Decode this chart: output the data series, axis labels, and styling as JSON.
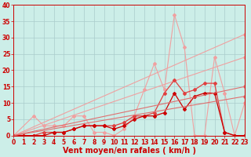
{
  "xlabel": "Vent moyen/en rafales ( km/h )",
  "background_color": "#cceee8",
  "grid_color": "#aacccc",
  "xlim": [
    0,
    23
  ],
  "ylim": [
    0,
    40
  ],
  "xticks": [
    0,
    1,
    2,
    3,
    4,
    5,
    6,
    7,
    8,
    9,
    10,
    11,
    12,
    13,
    14,
    15,
    16,
    17,
    18,
    19,
    20,
    21,
    22,
    23
  ],
  "yticks": [
    0,
    5,
    10,
    15,
    20,
    25,
    30,
    35,
    40
  ],
  "series": [
    {
      "name": "light_scatter",
      "color": "#f0a0a0",
      "lw": 0.8,
      "marker": "D",
      "ms": 2,
      "x": [
        0,
        2,
        3,
        4,
        5,
        6,
        7,
        8,
        9,
        10,
        11,
        12,
        13,
        14,
        15,
        16,
        17,
        18,
        19,
        20,
        21,
        22,
        23
      ],
      "y": [
        0,
        6,
        3,
        3,
        3,
        6,
        6,
        1,
        1,
        0,
        2,
        6,
        14,
        22,
        14,
        37,
        27,
        0,
        0,
        24,
        13,
        0,
        10
      ]
    },
    {
      "name": "linear_high",
      "color": "#f0a0a0",
      "lw": 0.8,
      "marker": "D",
      "ms": 2,
      "x": [
        0,
        23
      ],
      "y": [
        0,
        31
      ]
    },
    {
      "name": "linear_mid",
      "color": "#f0a0a0",
      "lw": 0.8,
      "marker": "D",
      "ms": 2,
      "x": [
        0,
        23
      ],
      "y": [
        0,
        24
      ]
    },
    {
      "name": "medium_red",
      "color": "#e04040",
      "lw": 0.9,
      "marker": "D",
      "ms": 2,
      "x": [
        0,
        1,
        2,
        3,
        4,
        5,
        6,
        7,
        8,
        9,
        10,
        11,
        12,
        13,
        14,
        15,
        16,
        17,
        18,
        19,
        20,
        21,
        22,
        23
      ],
      "y": [
        0,
        0,
        0,
        1,
        1,
        1,
        2,
        3,
        3,
        3,
        3,
        4,
        6,
        6,
        7,
        13,
        17,
        13,
        14,
        16,
        16,
        1,
        0,
        0
      ]
    },
    {
      "name": "dark_red",
      "color": "#cc0000",
      "lw": 0.9,
      "marker": "D",
      "ms": 2,
      "x": [
        0,
        1,
        2,
        3,
        4,
        5,
        6,
        7,
        8,
        9,
        10,
        11,
        12,
        13,
        14,
        15,
        16,
        17,
        18,
        19,
        20,
        21,
        22,
        23
      ],
      "y": [
        0,
        0,
        0,
        0,
        1,
        1,
        2,
        3,
        3,
        3,
        2,
        3,
        5,
        6,
        6,
        7,
        13,
        8,
        12,
        13,
        13,
        1,
        0,
        0
      ]
    },
    {
      "name": "linear_low1",
      "color": "#e07070",
      "lw": 0.8,
      "marker": "D",
      "ms": 2,
      "x": [
        0,
        23
      ],
      "y": [
        0,
        15
      ]
    },
    {
      "name": "linear_low2",
      "color": "#e07070",
      "lw": 0.8,
      "marker": "D",
      "ms": 2,
      "x": [
        0,
        23
      ],
      "y": [
        0,
        12
      ]
    }
  ],
  "tick_fontsize": 5.5,
  "label_fontsize": 7,
  "label_color": "#cc0000",
  "tick_color": "#cc0000"
}
